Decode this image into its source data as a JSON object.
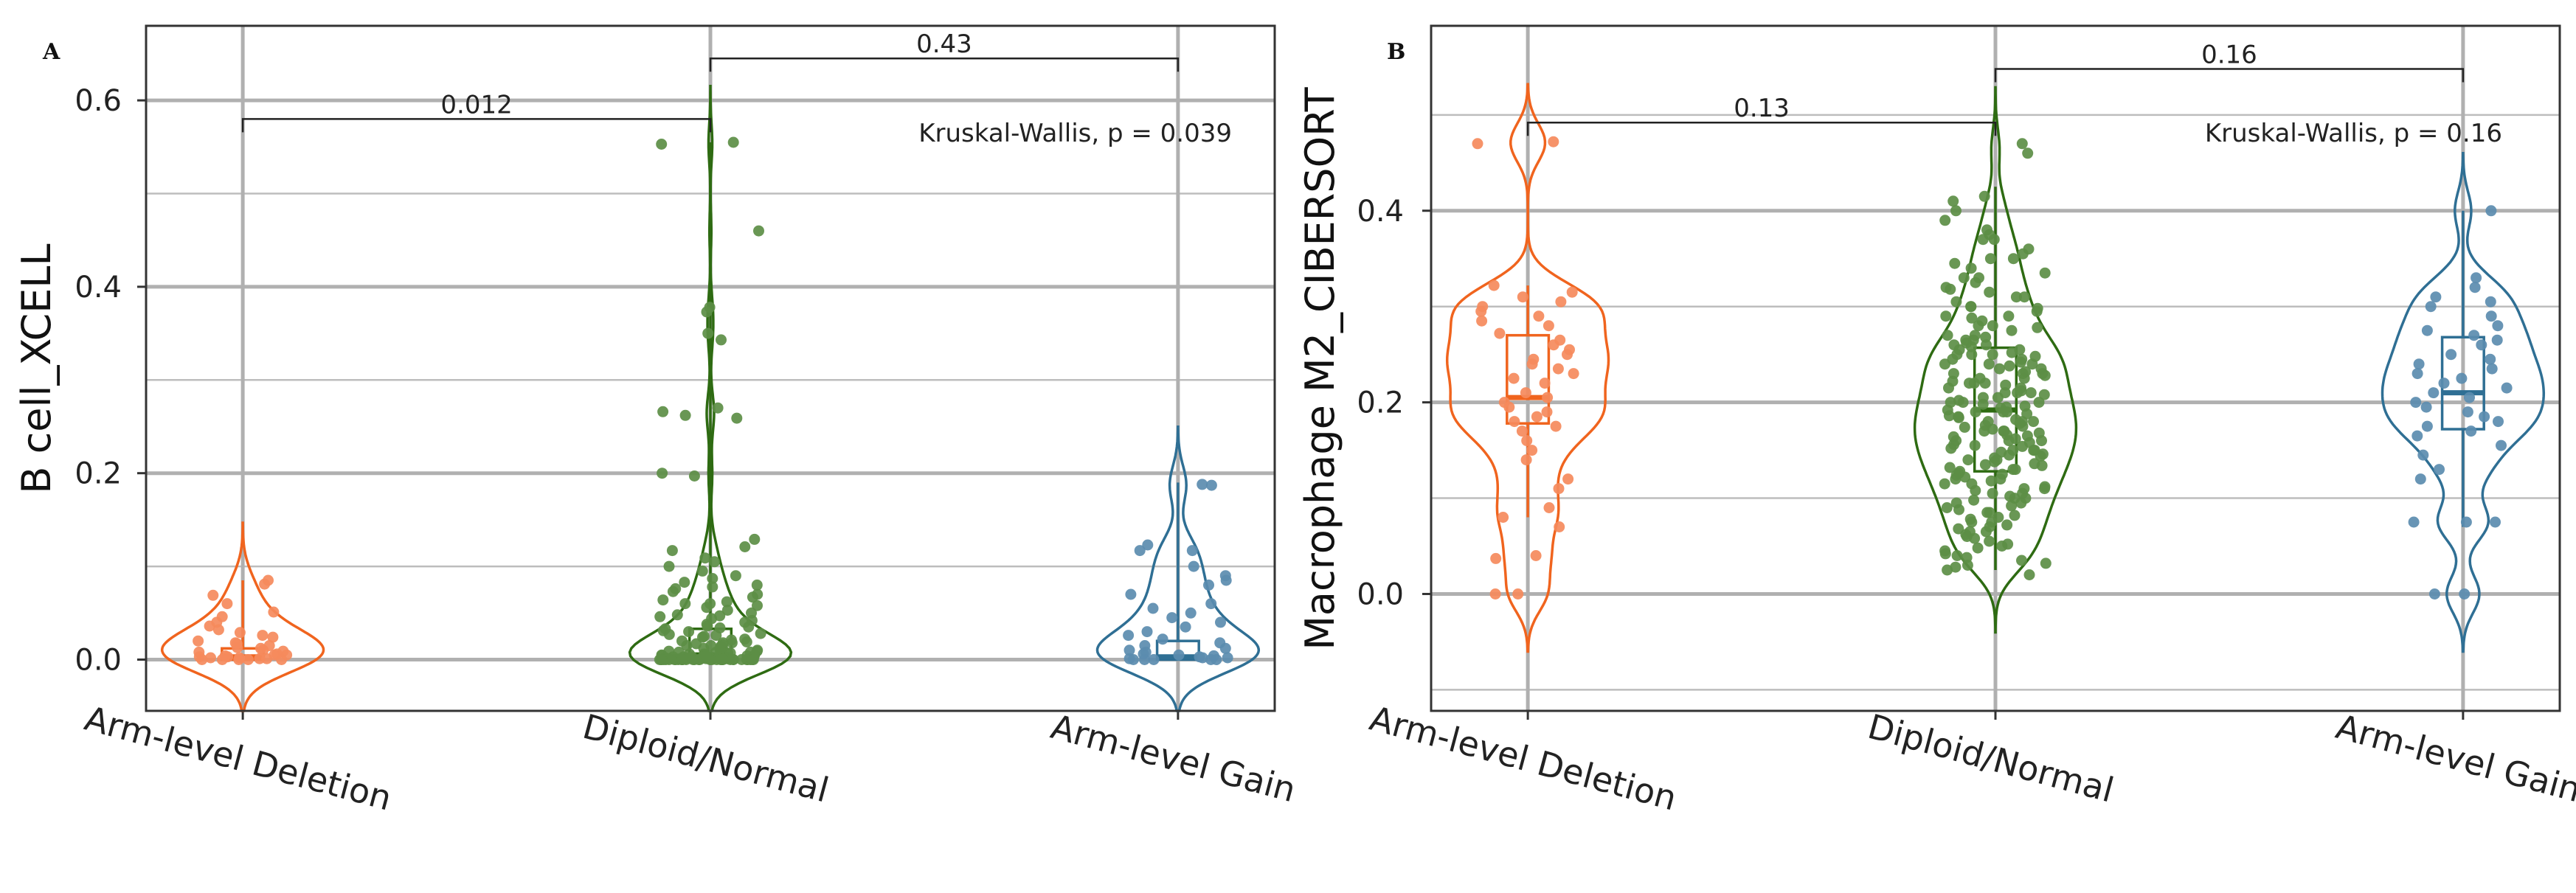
{
  "chart_data": [
    {
      "type": "violin",
      "panel_label": "A",
      "ylabel": "B cell_XCELL",
      "categories": [
        "Arm-level Deletion",
        "Diploid/Normal",
        "Arm-level Gain"
      ],
      "ylim": [
        -0.055,
        0.68
      ],
      "yticks": [
        0.0,
        0.2,
        0.4,
        0.6
      ],
      "yticklabels": [
        "0.0",
        "0.2",
        "0.4",
        "0.6"
      ],
      "minor_ygrid": [
        0.1,
        0.3,
        0.5
      ],
      "grid": true,
      "colors": [
        "#f0641e",
        "#2e6b12",
        "#2f6f94"
      ],
      "point_colors": [
        "#f58a5c",
        "#5c8e45",
        "#5b8caf"
      ],
      "groups": [
        {
          "name": "Arm-level Deletion",
          "box": {
            "q1": 0.0,
            "median": 0.003,
            "q3": 0.012,
            "whisker_low": 0.0,
            "whisker_high": 0.085
          },
          "points": [
            0.081,
            0.069,
            0.085,
            0.06,
            0.051,
            0.046,
            0.04,
            0.036,
            0.032,
            0.029,
            0.026,
            0.024,
            0.02,
            0.018,
            0.015,
            0.012,
            0.01,
            0.008,
            0.006,
            0.005,
            0.004,
            0.003,
            0.002,
            0.001,
            0.0,
            0.0,
            0.0,
            0.002,
            0.005,
            0.009,
            0.013,
            0.017,
            0.0,
            0.001,
            0.003,
            0.0
          ]
        },
        {
          "name": "Diploid/Normal",
          "box": {
            "q1": 0.0,
            "median": 0.005,
            "q3": 0.033,
            "whisker_low": 0.0,
            "whisker_high": 0.555
          },
          "points": [
            0.555,
            0.553,
            0.46,
            0.378,
            0.373,
            0.35,
            0.343,
            0.27,
            0.266,
            0.262,
            0.259,
            0.2,
            0.197,
            0.129,
            0.121,
            0.117,
            0.109,
            0.105,
            0.1,
            0.095,
            0.09,
            0.087,
            0.083,
            0.08,
            0.078,
            0.076,
            0.073,
            0.07,
            0.067,
            0.064,
            0.062,
            0.06,
            0.058,
            0.056,
            0.053,
            0.05,
            0.048,
            0.046,
            0.044,
            0.042,
            0.04,
            0.038,
            0.036,
            0.035,
            0.033,
            0.031,
            0.03,
            0.028,
            0.027,
            0.025,
            0.024,
            0.022,
            0.021,
            0.02,
            0.019,
            0.018,
            0.017,
            0.016,
            0.015,
            0.014,
            0.013,
            0.012,
            0.011,
            0.01,
            0.009,
            0.009,
            0.008,
            0.008,
            0.007,
            0.007,
            0.006,
            0.006,
            0.005,
            0.005,
            0.004,
            0.004,
            0.004,
            0.003,
            0.003,
            0.003,
            0.002,
            0.002,
            0.002,
            0.002,
            0.001,
            0.001,
            0.001,
            0.001,
            0.001,
            0.001,
            0.0,
            0.0,
            0.0,
            0.0,
            0.0,
            0.0,
            0.0,
            0.0,
            0.0,
            0.0,
            0.0,
            0.0,
            0.0,
            0.0,
            0.0,
            0.0,
            0.0,
            0.0,
            0.0,
            0.0,
            0.0,
            0.0,
            0.0,
            0.0,
            0.0,
            0.0,
            0.0,
            0.0,
            0.0,
            0.0,
            0.002,
            0.005,
            0.012,
            0.018,
            0.026,
            0.034,
            0.047,
            0.06,
            0.0,
            0.001,
            0.003,
            0.0,
            0.0,
            0.0,
            0.0,
            0.004,
            0.008,
            0.015
          ]
        },
        {
          "name": "Arm-level Gain",
          "box": {
            "q1": 0.0,
            "median": 0.003,
            "q3": 0.02,
            "whisker_low": 0.0,
            "whisker_high": 0.19
          },
          "points": [
            0.188,
            0.187,
            0.123,
            0.117,
            0.117,
            0.1,
            0.09,
            0.085,
            0.08,
            0.07,
            0.06,
            0.055,
            0.05,
            0.045,
            0.04,
            0.035,
            0.03,
            0.026,
            0.022,
            0.018,
            0.015,
            0.012,
            0.01,
            0.008,
            0.006,
            0.004,
            0.003,
            0.002,
            0.001,
            0.0,
            0.0,
            0.0,
            0.0,
            0.0,
            0.002,
            0.005
          ]
        }
      ],
      "comparisons": [
        {
          "groups": [
            "Arm-level Deletion",
            "Diploid/Normal"
          ],
          "label": "0.012",
          "y": 0.58
        },
        {
          "groups": [
            "Diploid/Normal",
            "Arm-level Gain"
          ],
          "label": "0.43",
          "y": 0.645
        }
      ],
      "annotation": "Kruskal-Wallis, p = 0.039"
    },
    {
      "type": "violin",
      "panel_label": "B",
      "ylabel": "Macrophage M2_CIBERSORT",
      "categories": [
        "Arm-level Deletion",
        "Diploid/Normal",
        "Arm-level Gain"
      ],
      "ylim": [
        -0.122,
        0.593
      ],
      "yticks": [
        0.0,
        0.2,
        0.4
      ],
      "yticklabels": [
        "0.0",
        "0.2",
        "0.4"
      ],
      "minor_ygrid": [
        -0.1,
        0.1,
        0.3,
        0.5
      ],
      "grid": true,
      "colors": [
        "#f0641e",
        "#2e6b12",
        "#2f6f94"
      ],
      "point_colors": [
        "#f58a5c",
        "#5c8e45",
        "#5b8caf"
      ],
      "groups": [
        {
          "name": "Arm-level Deletion",
          "box": {
            "q1": 0.178,
            "median": 0.205,
            "q3": 0.27,
            "whisker_low": 0.08,
            "whisker_high": 0.322
          },
          "points": [
            0.472,
            0.47,
            0.322,
            0.315,
            0.31,
            0.305,
            0.3,
            0.295,
            0.29,
            0.285,
            0.28,
            0.272,
            0.265,
            0.26,
            0.255,
            0.25,
            0.245,
            0.24,
            0.235,
            0.23,
            0.225,
            0.22,
            0.21,
            0.205,
            0.2,
            0.195,
            0.19,
            0.185,
            0.18,
            0.175,
            0.17,
            0.16,
            0.15,
            0.14,
            0.12,
            0.11,
            0.09,
            0.08,
            0.07,
            0.04,
            0.037,
            0.0,
            0.0
          ]
        },
        {
          "name": "Diploid/Normal",
          "box": {
            "q1": 0.128,
            "median": 0.192,
            "q3": 0.257,
            "whisker_low": 0.025,
            "whisker_high": 0.425
          },
          "points": [
            0.47,
            0.46,
            0.415,
            0.41,
            0.4,
            0.39,
            0.38,
            0.375,
            0.37,
            0.36,
            0.355,
            0.35,
            0.345,
            0.34,
            0.335,
            0.33,
            0.325,
            0.32,
            0.318,
            0.315,
            0.31,
            0.305,
            0.3,
            0.298,
            0.295,
            0.29,
            0.288,
            0.285,
            0.28,
            0.278,
            0.275,
            0.27,
            0.268,
            0.265,
            0.262,
            0.26,
            0.258,
            0.255,
            0.252,
            0.25,
            0.248,
            0.245,
            0.242,
            0.24,
            0.238,
            0.235,
            0.232,
            0.23,
            0.228,
            0.225,
            0.222,
            0.22,
            0.218,
            0.215,
            0.212,
            0.21,
            0.208,
            0.205,
            0.202,
            0.2,
            0.198,
            0.196,
            0.194,
            0.192,
            0.19,
            0.188,
            0.186,
            0.184,
            0.182,
            0.18,
            0.178,
            0.176,
            0.174,
            0.172,
            0.17,
            0.168,
            0.166,
            0.164,
            0.162,
            0.16,
            0.158,
            0.156,
            0.154,
            0.152,
            0.15,
            0.148,
            0.146,
            0.144,
            0.142,
            0.14,
            0.138,
            0.136,
            0.134,
            0.132,
            0.13,
            0.128,
            0.126,
            0.124,
            0.122,
            0.12,
            0.118,
            0.115,
            0.112,
            0.11,
            0.108,
            0.105,
            0.102,
            0.1,
            0.098,
            0.095,
            0.092,
            0.09,
            0.088,
            0.085,
            0.082,
            0.08,
            0.078,
            0.075,
            0.072,
            0.07,
            0.068,
            0.065,
            0.062,
            0.06,
            0.058,
            0.055,
            0.052,
            0.05,
            0.048,
            0.045,
            0.042,
            0.04,
            0.038,
            0.035,
            0.032,
            0.03,
            0.028,
            0.025,
            0.02,
            0.19,
            0.2,
            0.21,
            0.22,
            0.23,
            0.17,
            0.18,
            0.24,
            0.25,
            0.16,
            0.26,
            0.15,
            0.27,
            0.14,
            0.28,
            0.13,
            0.29,
            0.195,
            0.205,
            0.215,
            0.185,
            0.175,
            0.225,
            0.165,
            0.235,
            0.155,
            0.245,
            0.145,
            0.255,
            0.135,
            0.265,
            0.125,
            0.115,
            0.105,
            0.095,
            0.085,
            0.075,
            0.065,
            0.21,
            0.19,
            0.2,
            0.18,
            0.22,
            0.17,
            0.23,
            0.16,
            0.24,
            0.15,
            0.25,
            0.3,
            0.31,
            0.33,
            0.35,
            0.37,
            0.12,
            0.11,
            0.1
          ]
        },
        {
          "name": "Arm-level Gain",
          "box": {
            "q1": 0.172,
            "median": 0.21,
            "q3": 0.268,
            "whisker_low": 0.07,
            "whisker_high": 0.4
          },
          "points": [
            0.4,
            0.33,
            0.32,
            0.31,
            0.305,
            0.3,
            0.29,
            0.28,
            0.275,
            0.27,
            0.265,
            0.26,
            0.25,
            0.245,
            0.24,
            0.235,
            0.23,
            0.225,
            0.22,
            0.215,
            0.21,
            0.205,
            0.2,
            0.195,
            0.19,
            0.185,
            0.18,
            0.175,
            0.17,
            0.165,
            0.155,
            0.145,
            0.13,
            0.12,
            0.075,
            0.075,
            0.075,
            0.0,
            0.0
          ]
        }
      ],
      "comparisons": [
        {
          "groups": [
            "Arm-level Deletion",
            "Diploid/Normal"
          ],
          "label": "0.13",
          "y": 0.492
        },
        {
          "groups": [
            "Diploid/Normal",
            "Arm-level Gain"
          ],
          "label": "0.16",
          "y": 0.548
        }
      ],
      "annotation": "Kruskal-Wallis, p = 0.16"
    }
  ]
}
